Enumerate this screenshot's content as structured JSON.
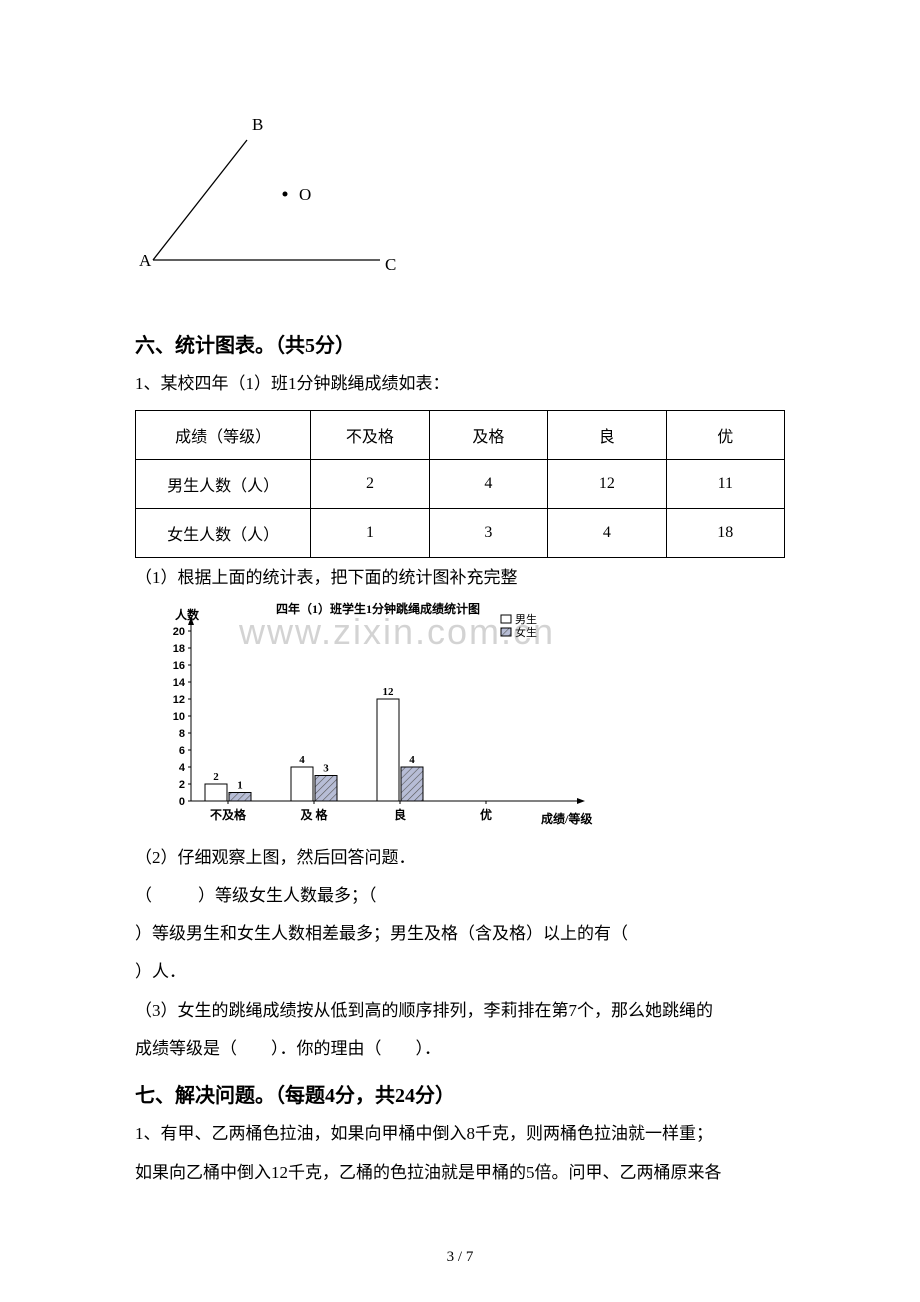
{
  "angle_figure": {
    "labels": {
      "A": "A",
      "B": "B",
      "C": "C",
      "O": "O"
    },
    "line_color": "#000000",
    "label_fontsize": 17
  },
  "section6": {
    "title": "六、统计图表。（共5分）",
    "q1_intro": "1、某校四年（1）班1分钟跳绳成绩如表：",
    "table": {
      "columns": [
        "成绩（等级）",
        "不及格",
        "及格",
        "良",
        "优"
      ],
      "rows": [
        [
          "男生人数（人）",
          "2",
          "4",
          "12",
          "11"
        ],
        [
          "女生人数（人）",
          "1",
          "3",
          "4",
          "18"
        ]
      ],
      "border_color": "#000000",
      "cell_fontsize": 16
    },
    "sub1": "（1）根据上面的统计表，把下面的统计图补充完整",
    "chart": {
      "title": "四年（1）班学生1分钟跳绳成绩统计图",
      "y_label": "人数",
      "x_label": "成绩/等级",
      "legend": [
        "男生",
        "女生"
      ],
      "legend_colors": [
        "#ffffff",
        "#9da3c9"
      ],
      "legend_pattern": [
        "none",
        "hatch"
      ],
      "y_ticks": [
        0,
        2,
        4,
        6,
        8,
        10,
        12,
        14,
        16,
        18,
        20
      ],
      "categories": [
        "不及格",
        "及 格",
        "良",
        "优"
      ],
      "boys": [
        2,
        4,
        12,
        null
      ],
      "girls": [
        1,
        3,
        4,
        null
      ],
      "bar_labels_boys": [
        "2",
        "4",
        "12",
        ""
      ],
      "bar_labels_girls": [
        "1",
        "3",
        "4",
        ""
      ],
      "y_max": 20,
      "axis_color": "#000000",
      "bar_outline": "#000000",
      "girl_fill": "#b7bdd6",
      "title_fontsize": 12,
      "tick_fontsize": 11
    },
    "sub2": "（2）仔细观察上图，然后回答问题．",
    "blank_line1_a": "（",
    "blank_line1_b": "）等级女生人数最多；（",
    "blank_line2": "）等级男生和女生人数相差最多；男生及格（含及格）以上的有（",
    "blank_line3": "）人．",
    "sub3a": "（3）女生的跳绳成绩按从低到高的顺序排列，李莉排在第7个，那么她跳绳的",
    "sub3b": "成绩等级是（　　）．你的理由（　　）．"
  },
  "section7": {
    "title": "七、解决问题。（每题4分，共24分）",
    "q1a": "1、有甲、乙两桶色拉油，如果向甲桶中倒入8千克，则两桶色拉油就一样重；",
    "q1b": "如果向乙桶中倒入12千克，乙桶的色拉油就是甲桶的5倍。问甲、乙两桶原来各"
  },
  "page_number": "3 / 7"
}
